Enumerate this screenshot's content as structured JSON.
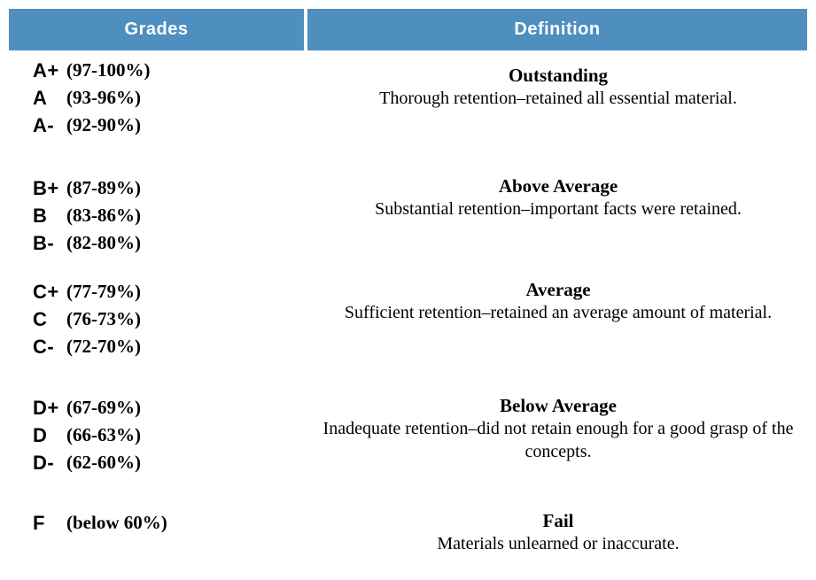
{
  "header": {
    "grades_label": "Grades",
    "definition_label": "Definition"
  },
  "colors": {
    "header_bg": "#4e8fbf",
    "header_text": "#ffffff"
  },
  "sections": [
    {
      "grades": [
        {
          "letter": "A+",
          "range": "(97-100%)"
        },
        {
          "letter": "A",
          "range": "(93-96%)"
        },
        {
          "letter": "A-",
          "range": "(92-90%)"
        }
      ],
      "title": "Outstanding",
      "description": "Thorough retention–retained all essential material."
    },
    {
      "grades": [
        {
          "letter": "B+",
          "range": "(87-89%)"
        },
        {
          "letter": "B",
          "range": "(83-86%)"
        },
        {
          "letter": "B-",
          "range": "(82-80%)"
        }
      ],
      "title": "Above Average",
      "description": "Substantial retention–important facts were retained."
    },
    {
      "grades": [
        {
          "letter": "C+",
          "range": "(77-79%)"
        },
        {
          "letter": "C",
          "range": "(76-73%)"
        },
        {
          "letter": "C-",
          "range": "(72-70%)"
        }
      ],
      "title": "Average",
      "description": "Sufficient retention–retained an average amount of material."
    },
    {
      "grades": [
        {
          "letter": "D+",
          "range": "(67-69%)"
        },
        {
          "letter": "D",
          "range": "(66-63%)"
        },
        {
          "letter": "D-",
          "range": "(62-60%)"
        }
      ],
      "title": "Below Average",
      "description": "Inadequate retention–did not retain enough for a good grasp of the concepts."
    },
    {
      "grades": [
        {
          "letter": "F",
          "range": "(below 60%)"
        }
      ],
      "title": "Fail",
      "description": "Materials unlearned or inaccurate."
    }
  ]
}
